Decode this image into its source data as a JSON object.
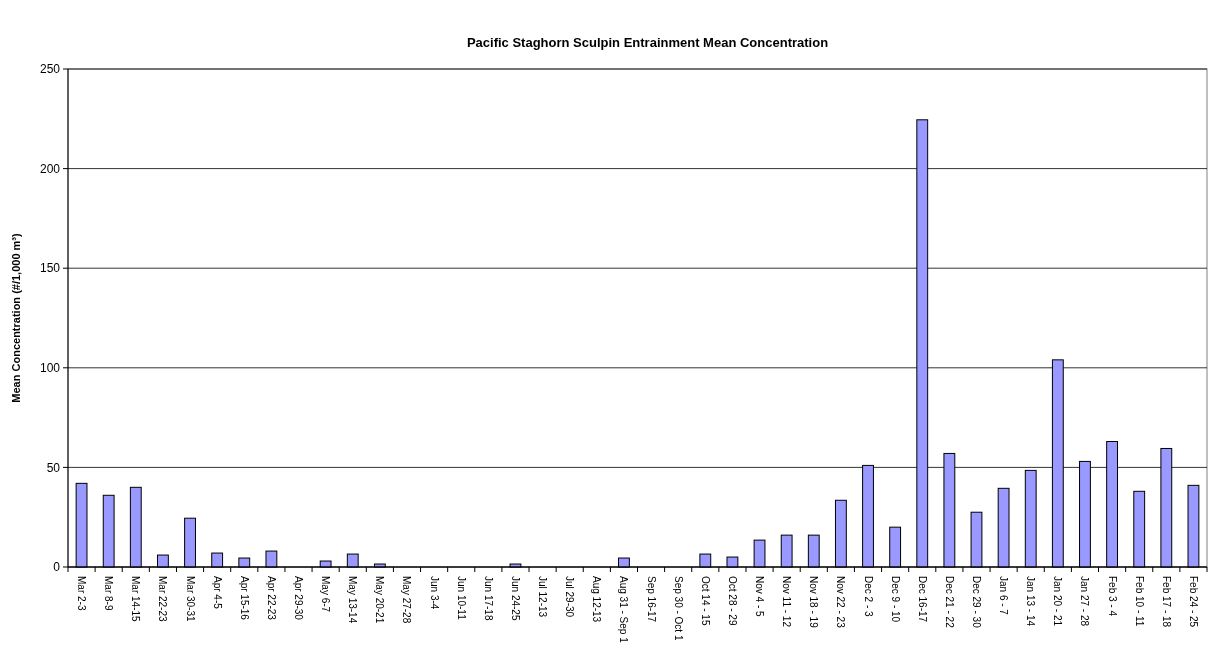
{
  "chart_data": {
    "type": "bar",
    "title": "Pacific Staghorn Sculpin Entrainment Mean Concentration",
    "ylabel": "Mean Concentration (#/1,000 m³)",
    "categories": [
      "Mar 2-3",
      "Mar 8-9",
      "Mar 14-15",
      "Mar 22-23",
      "Mar 30-31",
      "Apr 4-5",
      "Apr 15-16",
      "Apr 22-23",
      "Apr 29-30",
      "May 6-7",
      "May 13-14",
      "May 20-21",
      "May 27-28",
      "Jun 3-4",
      "Jun 10-11",
      "Jun 17-18",
      "Jun 24-25",
      "Jul 12-13",
      "Jul 29-30",
      "Aug 12-13",
      "Aug 31 - Sep 1",
      "Sep 16-17",
      "Sep 30 - Oct 1",
      "Oct 14 - 15",
      "Oct 28 - 29",
      "Nov 4 - 5",
      "Nov 11 - 12",
      "Nov 18 - 19",
      "Nov 22 - 23",
      "Dec 2 - 3",
      "Dec 9 - 10",
      "Dec 16-17",
      "Dec 21 - 22",
      "Dec 29 - 30",
      "Jan 6 - 7",
      "Jan 13 - 14",
      "Jan 20 - 21",
      "Jan 27 - 28",
      "Feb 3 - 4",
      "Feb 10 - 11",
      "Feb 17 - 18",
      "Feb 24 - 25"
    ],
    "values": [
      42,
      36,
      40,
      6,
      24.5,
      7,
      4.5,
      8,
      0,
      3,
      6.5,
      1.5,
      0,
      0,
      0,
      0,
      1.5,
      0,
      0,
      0,
      4.5,
      0,
      0,
      6.5,
      5,
      13.5,
      16,
      16,
      33.5,
      51,
      20,
      224.5,
      57,
      27.5,
      39.5,
      48.5,
      104,
      53,
      63,
      38,
      59.5,
      41
    ],
    "color": "#9999ff",
    "ylim": [
      0,
      250
    ],
    "yticks": [
      0,
      50,
      100,
      150,
      200,
      250
    ],
    "grid": "y"
  }
}
